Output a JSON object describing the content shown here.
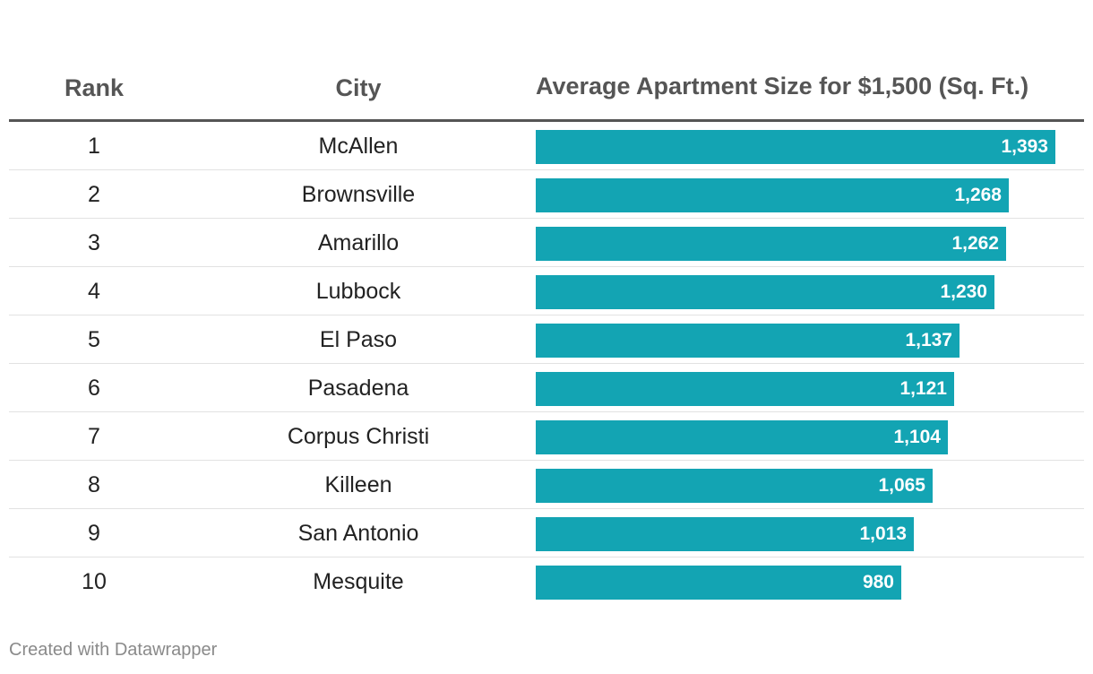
{
  "table": {
    "headers": {
      "rank": "Rank",
      "city": "City",
      "size": "Average Apartment Size for $1,500 (Sq. Ft.)"
    }
  },
  "chart_data": {
    "type": "bar",
    "orientation": "horizontal",
    "title": "",
    "xlabel": "",
    "ylabel": "",
    "categories": [
      "McAllen",
      "Brownsville",
      "Amarillo",
      "Lubbock",
      "El Paso",
      "Pasadena",
      "Corpus Christi",
      "Killeen",
      "San Antonio",
      "Mesquite"
    ],
    "ranks": [
      "1",
      "2",
      "3",
      "4",
      "5",
      "6",
      "7",
      "8",
      "9",
      "10"
    ],
    "values": [
      1393,
      1268,
      1262,
      1230,
      1137,
      1121,
      1104,
      1065,
      1013,
      980
    ],
    "value_labels": [
      "1,393",
      "1,268",
      "1,262",
      "1,230",
      "1,137",
      "1,121",
      "1,104",
      "1,065",
      "1,013",
      "980"
    ],
    "xlim": [
      0,
      1393
    ],
    "bar_color": "#13a4b3",
    "grid": false,
    "legend": "none"
  },
  "footer": {
    "credit": "Created with Datawrapper"
  }
}
